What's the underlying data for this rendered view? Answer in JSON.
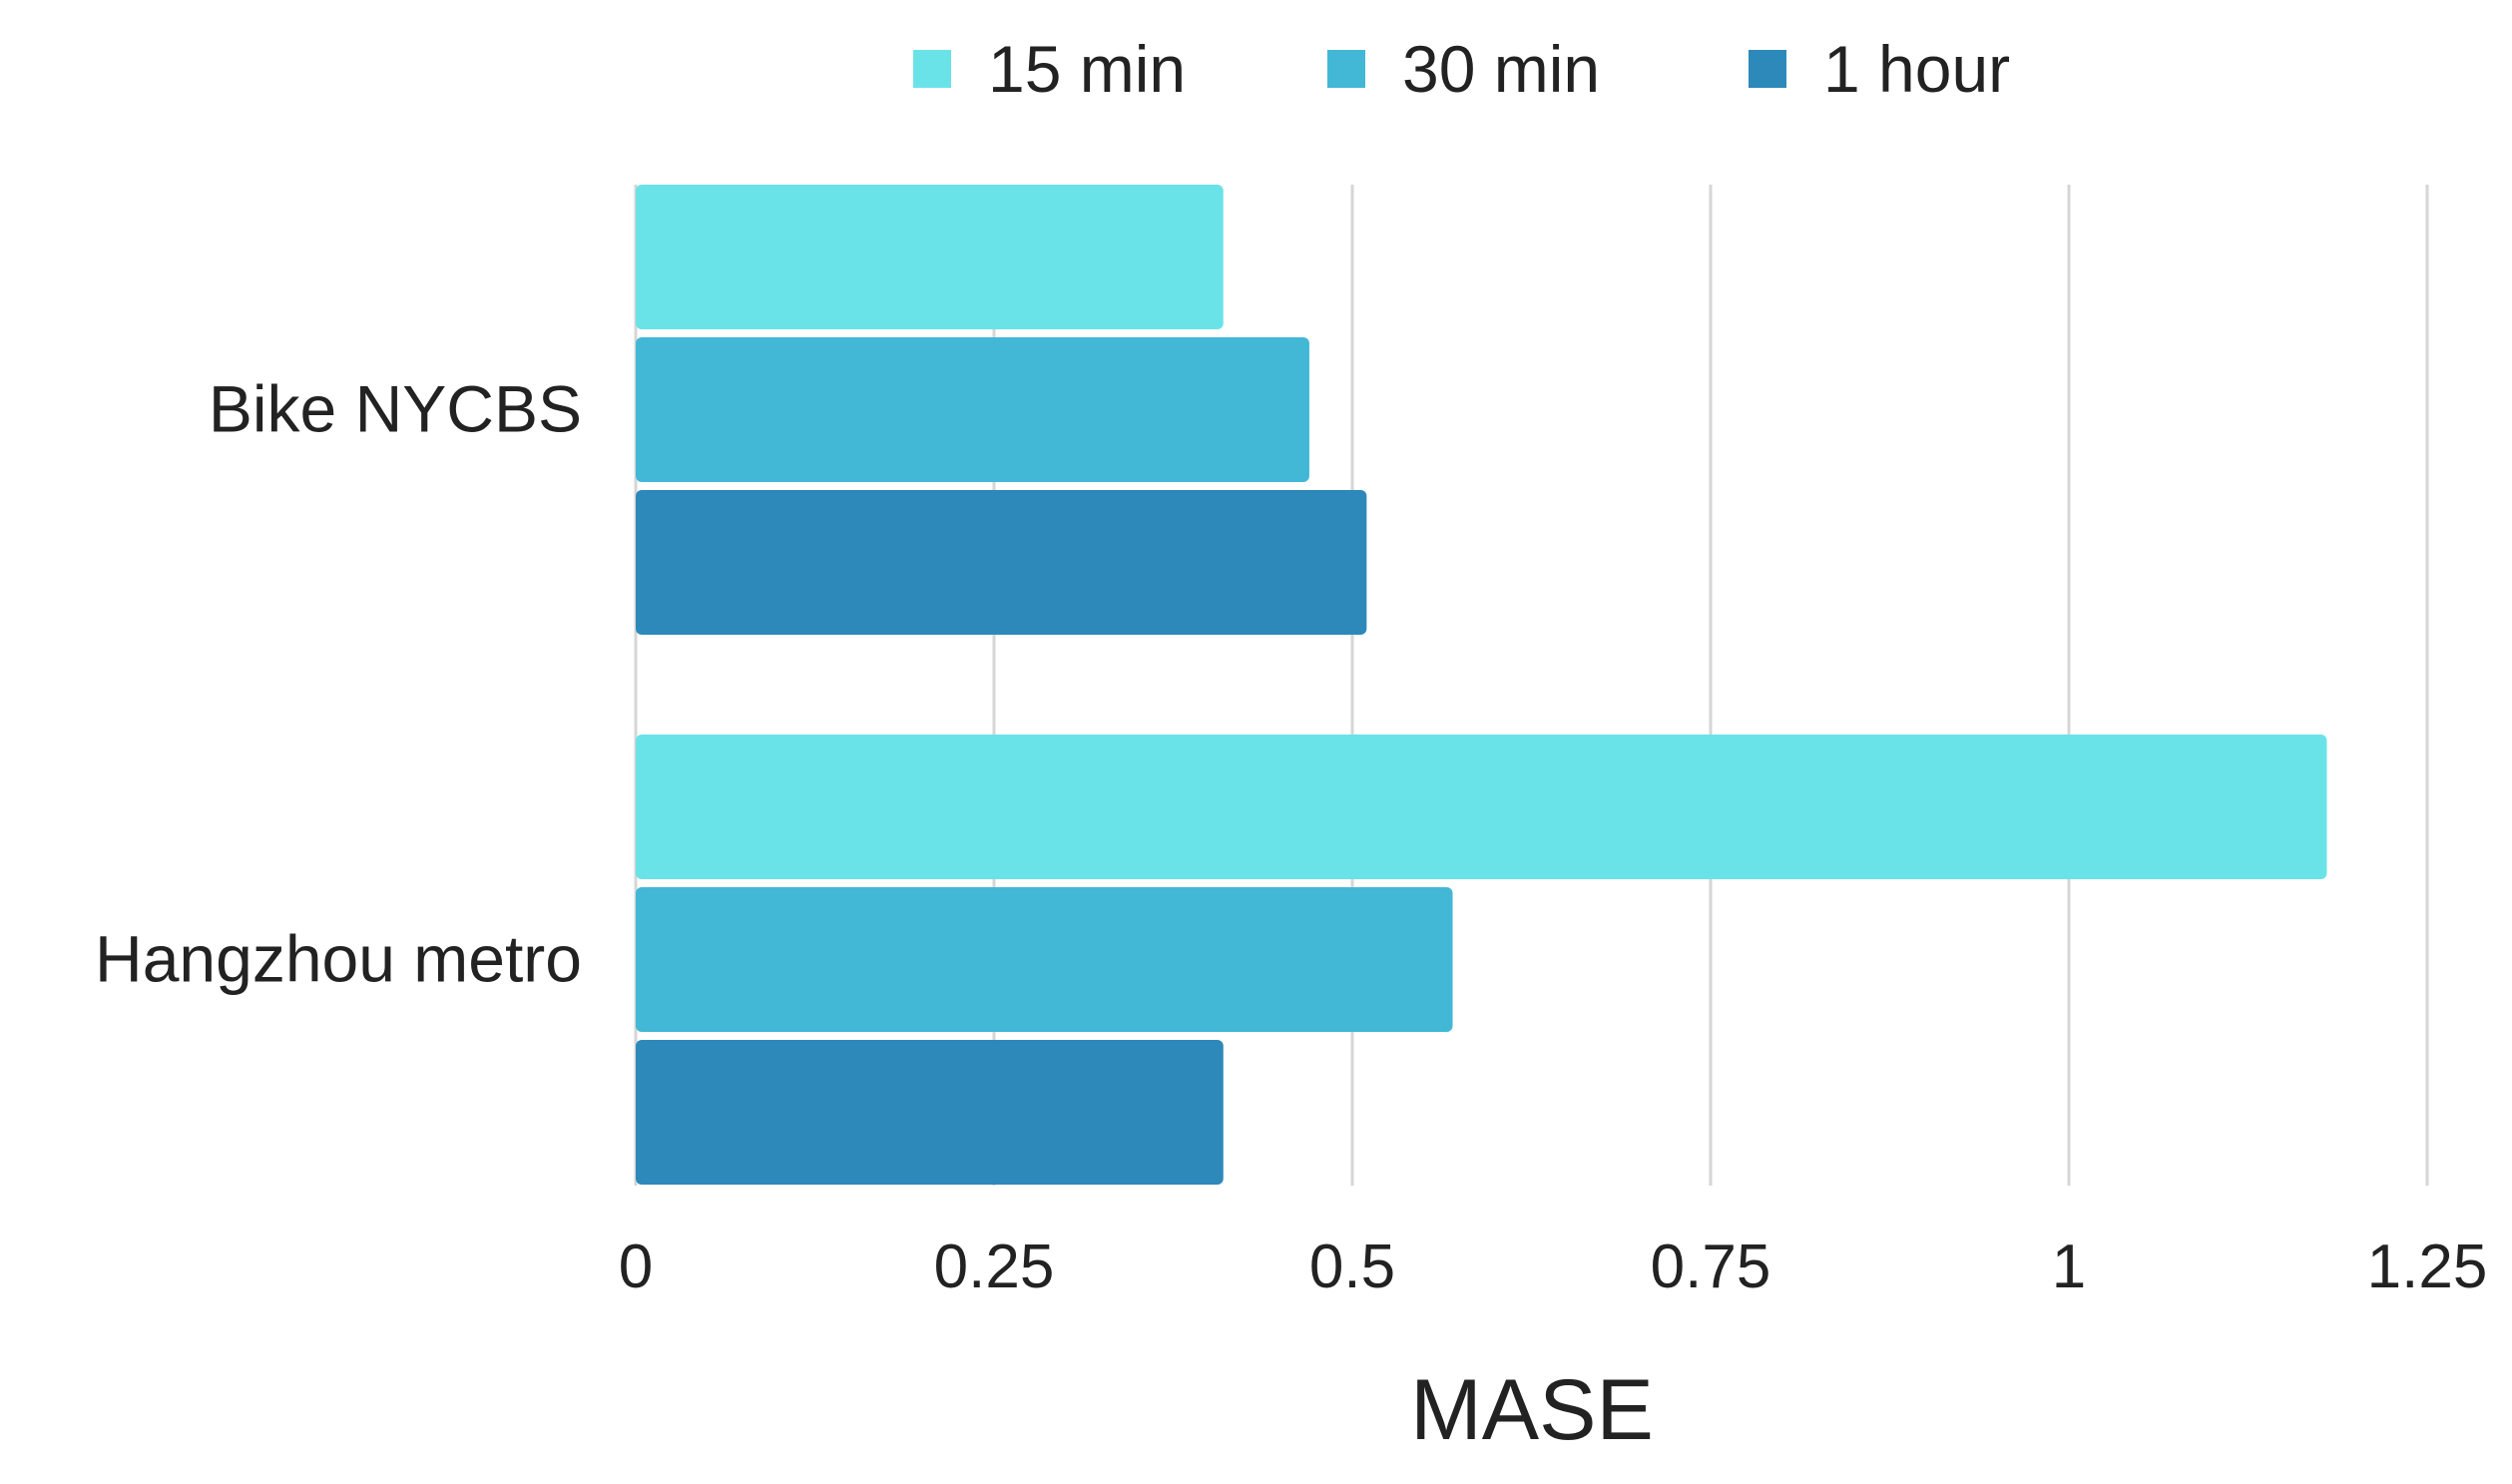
{
  "chart_data": {
    "type": "bar",
    "orientation": "horizontal",
    "categories": [
      "Bike NYCBS",
      "Hangzhou metro"
    ],
    "series": [
      {
        "name": "15 min",
        "color": "#6ae3e8",
        "values": [
          0.41,
          1.18
        ]
      },
      {
        "name": "30 min",
        "color": "#42b7d6",
        "values": [
          0.47,
          0.57
        ]
      },
      {
        "name": "1 hour",
        "color": "#2d89b9",
        "values": [
          0.51,
          0.41
        ]
      }
    ],
    "xlabel": "MASE",
    "ylabel": "",
    "xlim": [
      0,
      1.25
    ],
    "xticks": [
      0,
      0.25,
      0.5,
      0.75,
      1,
      1.25
    ],
    "xtick_labels": [
      "0",
      "0.25",
      "0.5",
      "0.75",
      "1",
      "1.25"
    ],
    "grid": "vertical",
    "legend_position": "top-center",
    "gridline_color": "#d6d6d6"
  }
}
